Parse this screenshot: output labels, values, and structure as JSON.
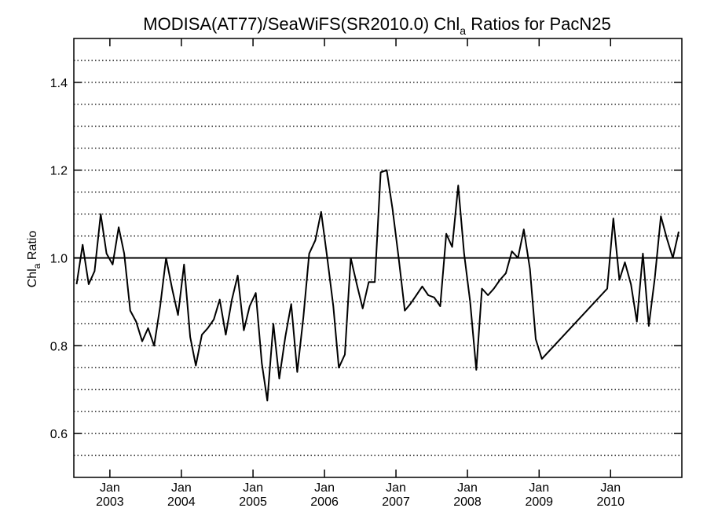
{
  "chart_data": {
    "type": "line",
    "title": {
      "main": "MODISA(AT77)/SeaWiFS(SR2010.0)  Chl",
      "sub": "a",
      "tail": " Ratios for PacN25"
    },
    "ylabel": {
      "main": "Chl",
      "sub": "a",
      "tail": " Ratio"
    },
    "xlim": [
      "2002-07-01",
      "2010-12-31"
    ],
    "ylim": [
      0.5,
      1.5
    ],
    "yticks": [
      {
        "value": 0.6,
        "label": "0.6"
      },
      {
        "value": 0.8,
        "label": "0.8"
      },
      {
        "value": 1.0,
        "label": "1.0"
      },
      {
        "value": 1.2,
        "label": "1.2"
      },
      {
        "value": 1.4,
        "label": "1.4"
      }
    ],
    "xticks": [
      {
        "date": "2003-01-01",
        "month": "Jan",
        "year": "2003"
      },
      {
        "date": "2004-01-01",
        "month": "Jan",
        "year": "2004"
      },
      {
        "date": "2005-01-01",
        "month": "Jan",
        "year": "2005"
      },
      {
        "date": "2006-01-01",
        "month": "Jan",
        "year": "2006"
      },
      {
        "date": "2007-01-01",
        "month": "Jan",
        "year": "2007"
      },
      {
        "date": "2008-01-01",
        "month": "Jan",
        "year": "2008"
      },
      {
        "date": "2009-01-01",
        "month": "Jan",
        "year": "2009"
      },
      {
        "date": "2010-01-01",
        "month": "Jan",
        "year": "2010"
      }
    ],
    "grid": {
      "y_dotted_every": 0.05,
      "x": false
    },
    "reference_line": 1.0,
    "series": [
      {
        "values": [
          [
            "2002-07-15",
            0.94
          ],
          [
            "2002-08-15",
            1.03
          ],
          [
            "2002-09-15",
            0.94
          ],
          [
            "2002-10-15",
            0.97
          ],
          [
            "2002-11-15",
            1.1
          ],
          [
            "2002-12-15",
            1.01
          ],
          [
            "2003-01-15",
            0.985
          ],
          [
            "2003-02-15",
            1.07
          ],
          [
            "2003-03-15",
            1.01
          ],
          [
            "2003-04-15",
            0.88
          ],
          [
            "2003-05-15",
            0.855
          ],
          [
            "2003-06-15",
            0.81
          ],
          [
            "2003-07-15",
            0.84
          ],
          [
            "2003-08-15",
            0.8
          ],
          [
            "2003-09-15",
            0.89
          ],
          [
            "2003-10-15",
            1.0
          ],
          [
            "2003-11-15",
            0.93
          ],
          [
            "2003-12-15",
            0.87
          ],
          [
            "2004-01-15",
            0.985
          ],
          [
            "2004-02-15",
            0.82
          ],
          [
            "2004-03-15",
            0.755
          ],
          [
            "2004-04-15",
            0.825
          ],
          [
            "2004-05-15",
            0.84
          ],
          [
            "2004-06-15",
            0.86
          ],
          [
            "2004-07-15",
            0.905
          ],
          [
            "2004-08-15",
            0.825
          ],
          [
            "2004-09-15",
            0.905
          ],
          [
            "2004-10-15",
            0.96
          ],
          [
            "2004-11-15",
            0.835
          ],
          [
            "2004-12-15",
            0.89
          ],
          [
            "2005-01-15",
            0.92
          ],
          [
            "2005-02-15",
            0.76
          ],
          [
            "2005-03-15",
            0.675
          ],
          [
            "2005-04-15",
            0.85
          ],
          [
            "2005-05-15",
            0.725
          ],
          [
            "2005-06-15",
            0.82
          ],
          [
            "2005-07-15",
            0.895
          ],
          [
            "2005-08-15",
            0.74
          ],
          [
            "2005-09-15",
            0.865
          ],
          [
            "2005-10-15",
            1.01
          ],
          [
            "2005-11-15",
            1.04
          ],
          [
            "2005-12-15",
            1.105
          ],
          [
            "2006-01-15",
            1.0
          ],
          [
            "2006-02-15",
            0.89
          ],
          [
            "2006-03-15",
            0.75
          ],
          [
            "2006-04-15",
            0.78
          ],
          [
            "2006-05-15",
            1.0
          ],
          [
            "2006-06-15",
            0.94
          ],
          [
            "2006-07-15",
            0.885
          ],
          [
            "2006-08-15",
            0.945
          ],
          [
            "2006-09-15",
            0.945
          ],
          [
            "2006-10-15",
            1.195
          ],
          [
            "2006-11-15",
            1.2
          ],
          [
            "2006-12-15",
            1.11
          ],
          [
            "2007-01-15",
            1.0
          ],
          [
            "2007-02-15",
            0.88
          ],
          [
            "2007-03-15",
            0.895
          ],
          [
            "2007-04-15",
            0.915
          ],
          [
            "2007-05-15",
            0.935
          ],
          [
            "2007-06-15",
            0.915
          ],
          [
            "2007-07-15",
            0.91
          ],
          [
            "2007-08-15",
            0.89
          ],
          [
            "2007-09-15",
            1.055
          ],
          [
            "2007-10-15",
            1.025
          ],
          [
            "2007-11-15",
            1.165
          ],
          [
            "2007-12-15",
            1.01
          ],
          [
            "2008-01-15",
            0.9
          ],
          [
            "2008-02-15",
            0.745
          ],
          [
            "2008-03-15",
            0.93
          ],
          [
            "2008-04-15",
            0.915
          ],
          [
            "2008-05-15",
            0.93
          ],
          [
            "2008-06-15",
            0.95
          ],
          [
            "2008-07-15",
            0.965
          ],
          [
            "2008-08-15",
            1.015
          ],
          [
            "2008-09-15",
            1.0
          ],
          [
            "2008-10-15",
            1.065
          ],
          [
            "2008-11-15",
            0.975
          ],
          [
            "2008-12-15",
            0.815
          ],
          [
            "2009-01-15",
            0.77
          ],
          [
            "2009-12-15",
            0.93
          ],
          [
            "2010-01-15",
            1.09
          ],
          [
            "2010-02-15",
            0.95
          ],
          [
            "2010-03-15",
            0.99
          ],
          [
            "2010-04-15",
            0.94
          ],
          [
            "2010-05-15",
            0.855
          ],
          [
            "2010-06-15",
            1.01
          ],
          [
            "2010-07-15",
            0.845
          ],
          [
            "2010-08-15",
            0.955
          ],
          [
            "2010-09-15",
            1.095
          ],
          [
            "2010-10-15",
            1.045
          ],
          [
            "2010-11-15",
            1.0
          ],
          [
            "2010-12-15",
            1.06
          ]
        ]
      }
    ]
  }
}
